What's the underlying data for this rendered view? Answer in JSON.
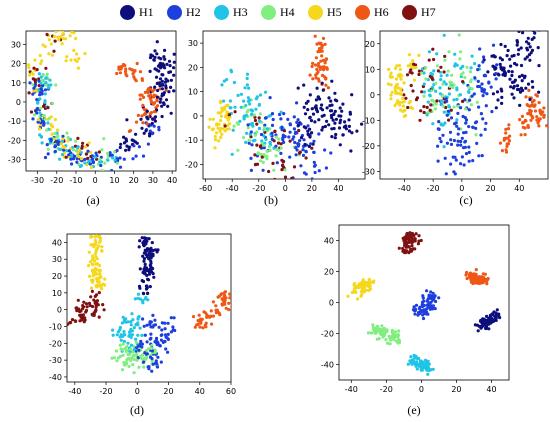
{
  "legend": {
    "items": [
      {
        "label": "H1",
        "color": "#0d0d7c"
      },
      {
        "label": "H2",
        "color": "#1e3ede"
      },
      {
        "label": "H3",
        "color": "#1fc4e6"
      },
      {
        "label": "H4",
        "color": "#80ef80"
      },
      {
        "label": "H5",
        "color": "#f5d81e"
      },
      {
        "label": "H6",
        "color": "#ef5716"
      },
      {
        "label": "H7",
        "color": "#801111"
      }
    ]
  },
  "chart_data": [
    {
      "type": "scatter",
      "label": "(a)",
      "xlim": [
        -36,
        42
      ],
      "ylim": [
        -36,
        37
      ],
      "xticks": [
        -30,
        -20,
        -10,
        0,
        10,
        20,
        30,
        40
      ],
      "yticks": [
        -30,
        -20,
        -10,
        0,
        10,
        20,
        30
      ],
      "clusters": [
        {
          "series": "H1",
          "points": [
            [
              33,
              23
            ],
            [
              35,
              16
            ],
            [
              36,
              8
            ],
            [
              34,
              0
            ],
            [
              30,
              -8
            ],
            [
              25,
              -15
            ],
            [
              18,
              -22
            ],
            [
              37,
              18
            ],
            [
              32,
              10
            ]
          ],
          "spread": 3,
          "n": 120
        },
        {
          "series": "H2",
          "points": [
            [
              10,
              -28
            ],
            [
              0,
              -30
            ],
            [
              -10,
              -27
            ],
            [
              -20,
              -22
            ],
            [
              -28,
              -10
            ],
            [
              20,
              -24
            ],
            [
              28,
              -14
            ],
            [
              -30,
              5
            ]
          ],
          "spread": 3,
          "n": 110
        },
        {
          "series": "H3",
          "points": [
            [
              -25,
              -18
            ],
            [
              -15,
              -25
            ],
            [
              -5,
              -29
            ],
            [
              5,
              -30
            ],
            [
              -30,
              0
            ],
            [
              -27,
              12
            ]
          ],
          "spread": 3,
          "n": 70
        },
        {
          "series": "H4",
          "points": [
            [
              -28,
              -5
            ],
            [
              -20,
              -20
            ],
            [
              -10,
              -26
            ],
            [
              5,
              -28
            ],
            [
              -25,
              10
            ]
          ],
          "spread": 3,
          "n": 50
        },
        {
          "series": "H5",
          "points": [
            [
              -31,
              18
            ],
            [
              -30,
              5
            ],
            [
              -26,
              -12
            ],
            [
              -15,
              -24
            ],
            [
              -22,
              30
            ],
            [
              -16,
              34
            ],
            [
              -10,
              22
            ],
            [
              -5,
              -28
            ]
          ],
          "spread": 3,
          "n": 90
        },
        {
          "series": "H6",
          "points": [
            [
              15,
              17
            ],
            [
              22,
              14
            ],
            [
              29,
              5
            ],
            [
              30,
              -2
            ],
            [
              26,
              -8
            ],
            [
              18,
              -16
            ]
          ],
          "spread": 2.5,
          "n": 80
        },
        {
          "series": "H7",
          "points": [
            [
              -30,
              12
            ],
            [
              -25,
              -5
            ],
            [
              -18,
              -20
            ],
            [
              -8,
              -28
            ],
            [
              -20,
              32
            ],
            [
              5,
              -30
            ]
          ],
          "spread": 3,
          "n": 45
        }
      ]
    },
    {
      "type": "scatter",
      "label": "(b)",
      "xlim": [
        -62,
        60
      ],
      "ylim": [
        -26,
        35
      ],
      "xticks": [
        -60,
        -40,
        -20,
        0,
        20,
        40
      ],
      "yticks": [
        -20,
        -10,
        0,
        10,
        20,
        30
      ],
      "clusters": [
        {
          "series": "H1",
          "points": [
            [
              20,
              8
            ],
            [
              30,
              4
            ],
            [
              40,
              0
            ],
            [
              47,
              -5
            ],
            [
              37,
              -2
            ],
            [
              25,
              3
            ],
            [
              15,
              -5
            ]
          ],
          "spread": 5,
          "n": 100
        },
        {
          "series": "H2",
          "points": [
            [
              0,
              -10
            ],
            [
              10,
              -15
            ],
            [
              20,
              -20
            ],
            [
              -10,
              -5
            ],
            [
              5,
              -3
            ],
            [
              15,
              -8
            ],
            [
              -20,
              -12
            ]
          ],
          "spread": 6,
          "n": 100
        },
        {
          "series": "H3",
          "points": [
            [
              -30,
              5
            ],
            [
              -40,
              10
            ],
            [
              -20,
              0
            ],
            [
              -10,
              -8
            ],
            [
              -35,
              -2
            ]
          ],
          "spread": 6,
          "n": 70
        },
        {
          "series": "H4",
          "points": [
            [
              -25,
              -5
            ],
            [
              -15,
              -12
            ],
            [
              -35,
              0
            ],
            [
              -5,
              -15
            ]
          ],
          "spread": 6,
          "n": 50
        },
        {
          "series": "H5",
          "points": [
            [
              -50,
              -5
            ],
            [
              -45,
              0
            ],
            [
              -52,
              -8
            ]
          ],
          "spread": 3,
          "n": 45
        },
        {
          "series": "H6",
          "points": [
            [
              25,
              28
            ],
            [
              28,
              22
            ],
            [
              30,
              15
            ],
            [
              23,
              18
            ]
          ],
          "spread": 2.5,
          "n": 55
        },
        {
          "series": "H7",
          "points": [
            [
              -20,
              -10
            ],
            [
              -10,
              -15
            ],
            [
              0,
              -20
            ],
            [
              -30,
              -5
            ],
            [
              10,
              -12
            ]
          ],
          "spread": 6,
          "n": 45
        }
      ]
    },
    {
      "type": "scatter",
      "label": "(c)",
      "xlim": [
        -57,
        60
      ],
      "ylim": [
        -33,
        25
      ],
      "xticks": [
        -40,
        -20,
        0,
        20,
        40
      ],
      "yticks": [
        -30,
        -20,
        -10,
        0,
        10,
        20
      ],
      "clusters": [
        {
          "series": "H1",
          "points": [
            [
              25,
              10
            ],
            [
              35,
              15
            ],
            [
              45,
              20
            ],
            [
              40,
              5
            ],
            [
              30,
              5
            ]
          ],
          "spread": 5,
          "n": 110
        },
        {
          "series": "H2",
          "points": [
            [
              -5,
              -10
            ],
            [
              5,
              -15
            ],
            [
              0,
              -25
            ],
            [
              10,
              -5
            ],
            [
              -10,
              -20
            ],
            [
              15,
              5
            ]
          ],
          "spread": 6,
          "n": 110
        },
        {
          "series": "H3",
          "points": [
            [
              -10,
              0
            ],
            [
              -20,
              5
            ],
            [
              0,
              10
            ],
            [
              -15,
              -10
            ]
          ],
          "spread": 6,
          "n": 70
        },
        {
          "series": "H4",
          "points": [
            [
              -5,
              5
            ],
            [
              -15,
              0
            ],
            [
              5,
              0
            ],
            [
              -25,
              -5
            ]
          ],
          "spread": 6,
          "n": 55
        },
        {
          "series": "H5",
          "points": [
            [
              -48,
              3
            ],
            [
              -43,
              0
            ],
            [
              -40,
              -5
            ],
            [
              -45,
              7
            ],
            [
              -35,
              12
            ]
          ],
          "spread": 3,
          "n": 70
        },
        {
          "series": "H6",
          "points": [
            [
              48,
              -2
            ],
            [
              53,
              -8
            ],
            [
              45,
              -10
            ],
            [
              28,
              -15
            ],
            [
              30,
              -20
            ]
          ],
          "spread": 2.5,
          "n": 75
        },
        {
          "series": "H7",
          "points": [
            [
              -30,
              5
            ],
            [
              -20,
              10
            ],
            [
              -35,
              0
            ],
            [
              -10,
              -5
            ],
            [
              -25,
              -5
            ]
          ],
          "spread": 5,
          "n": 50
        }
      ]
    },
    {
      "type": "scatter",
      "label": "(d)",
      "xlim": [
        -45,
        60
      ],
      "ylim": [
        -43,
        45
      ],
      "xticks": [
        -40,
        -20,
        0,
        20,
        40,
        60
      ],
      "yticks": [
        -40,
        -30,
        -20,
        -10,
        0,
        10,
        20,
        30,
        40
      ],
      "clusters": [
        {
          "series": "H1",
          "points": [
            [
              5,
              40
            ],
            [
              6,
              30
            ],
            [
              7,
              22
            ],
            [
              5,
              12
            ],
            [
              8,
              35
            ]
          ],
          "spread": 2.5,
          "n": 90
        },
        {
          "series": "H2",
          "points": [
            [
              8,
              -10
            ],
            [
              15,
              -20
            ],
            [
              10,
              -30
            ],
            [
              18,
              -12
            ],
            [
              5,
              -22
            ]
          ],
          "spread": 3.5,
          "n": 90
        },
        {
          "series": "H3",
          "points": [
            [
              0,
              -12
            ],
            [
              -5,
              -20
            ],
            [
              -10,
              -15
            ],
            [
              2,
              5
            ],
            [
              -5,
              -8
            ]
          ],
          "spread": 3,
          "n": 60
        },
        {
          "series": "H4",
          "points": [
            [
              0,
              -25
            ],
            [
              -5,
              -30
            ],
            [
              8,
              -28
            ],
            [
              -10,
              -26
            ]
          ],
          "spread": 3.5,
          "n": 80
        },
        {
          "series": "H5",
          "points": [
            [
              -25,
              38
            ],
            [
              -28,
              30
            ],
            [
              -27,
              22
            ],
            [
              -24,
              15
            ],
            [
              -26,
              45
            ]
          ],
          "spread": 2.5,
          "n": 80
        },
        {
          "series": "H6",
          "points": [
            [
              55,
              8
            ],
            [
              52,
              0
            ],
            [
              45,
              -5
            ],
            [
              40,
              -8
            ],
            [
              58,
              5
            ]
          ],
          "spread": 2.5,
          "n": 65
        },
        {
          "series": "H7",
          "points": [
            [
              -35,
              0
            ],
            [
              -30,
              -3
            ],
            [
              -25,
              0
            ],
            [
              -38,
              -6
            ],
            [
              -28,
              5
            ]
          ],
          "spread": 3,
          "n": 60
        }
      ]
    },
    {
      "type": "scatter",
      "label": "(e)",
      "xlim": [
        -47,
        50
      ],
      "ylim": [
        -50,
        50
      ],
      "xticks": [
        -40,
        -20,
        0,
        20,
        40
      ],
      "yticks": [
        -40,
        -20,
        0,
        20,
        40
      ],
      "clusters": [
        {
          "series": "H1",
          "points": [
            [
              38,
              -12
            ],
            [
              42,
              -10
            ],
            [
              35,
              -15
            ]
          ],
          "spread": 2,
          "n": 70
        },
        {
          "series": "H2",
          "points": [
            [
              3,
              -2
            ],
            [
              5,
              3
            ],
            [
              0,
              -6
            ]
          ],
          "spread": 2,
          "n": 70
        },
        {
          "series": "H3",
          "points": [
            [
              -5,
              -38
            ],
            [
              0,
              -40
            ],
            [
              2,
              -42
            ]
          ],
          "spread": 2,
          "n": 70
        },
        {
          "series": "H4",
          "points": [
            [
              -25,
              -18
            ],
            [
              -20,
              -20
            ],
            [
              -15,
              -22
            ]
          ],
          "spread": 2.2,
          "n": 75
        },
        {
          "series": "H5",
          "points": [
            [
              -38,
              8
            ],
            [
              -33,
              10
            ],
            [
              -30,
              12
            ]
          ],
          "spread": 2,
          "n": 70
        },
        {
          "series": "H6",
          "points": [
            [
              28,
              18
            ],
            [
              32,
              15
            ],
            [
              36,
              14
            ]
          ],
          "spread": 2,
          "n": 70
        },
        {
          "series": "H7",
          "points": [
            [
              -8,
              40
            ],
            [
              -5,
              42
            ],
            [
              -7,
              35
            ]
          ],
          "spread": 2,
          "n": 70
        }
      ]
    }
  ]
}
